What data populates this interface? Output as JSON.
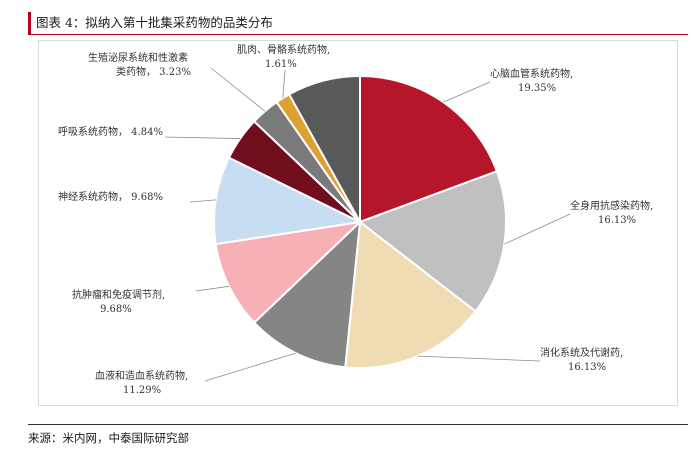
{
  "header": {
    "title": "图表 4：拟纳入第十批集采药物的品类分布"
  },
  "footer": {
    "source": "来源：米内网，中泰国际研究部"
  },
  "chart_data": {
    "type": "pie",
    "title": "",
    "slices": [
      {
        "name": "心脑血管系统药物",
        "value": 19.35,
        "label": "19.35%",
        "color": "#b5162c"
      },
      {
        "name": "全身用抗感染药物",
        "value": 16.13,
        "label": "16.13%",
        "color": "#c0c0c0"
      },
      {
        "name": "消化系统及代谢药",
        "value": 16.13,
        "label": "16.13%",
        "color": "#efdcb2"
      },
      {
        "name": "血液和造血系统药物",
        "value": 11.29,
        "label": "11.29%",
        "color": "#858585"
      },
      {
        "name": "抗肿瘤和免疫调节剂",
        "value": 9.68,
        "label": "9.68%",
        "color": "#f7b1b6"
      },
      {
        "name": "神经系统药物",
        "value": 9.68,
        "label": "9.68%",
        "color": "#c7ddf1"
      },
      {
        "name": "呼吸系统药物",
        "value": 4.84,
        "label": "4.84%",
        "color": "#700d1e"
      },
      {
        "name": "生殖泌尿系统和性激素类药物",
        "value": 3.23,
        "label": "3.23%",
        "color": "#7a7a7a"
      },
      {
        "name": "肌肉、骨骼系统药物",
        "value": 1.61,
        "label": "1.61%",
        "color": "#dca131"
      },
      {
        "name": "",
        "value": 8.06,
        "label": "",
        "color": "#595959"
      }
    ],
    "label_lines": [
      {
        "line1": "心脑血管系统药物,",
        "line2": "19.35%"
      },
      {
        "line1": "全身用抗感染药物,",
        "line2": "16.13%"
      },
      {
        "line1": "消化系统及代谢药,",
        "line2": "16.13%"
      },
      {
        "line1": "血液和造血系统药物,",
        "line2": "11.29%"
      },
      {
        "line1": "抗肿瘤和免疫调节剂,",
        "line2": "9.68%"
      },
      {
        "line1": "神经系统药物， 9.68%",
        "line2": ""
      },
      {
        "line1": "呼吸系统药物， 4.84%",
        "line2": ""
      },
      {
        "line1": "生殖泌尿系统和性激素",
        "line2": "类药物， 3.23%"
      },
      {
        "line1": "肌肉、骨骼系统药物,",
        "line2": "1.61%"
      },
      {
        "line1": "",
        "line2": ""
      }
    ],
    "legend": "none",
    "grid": false
  }
}
